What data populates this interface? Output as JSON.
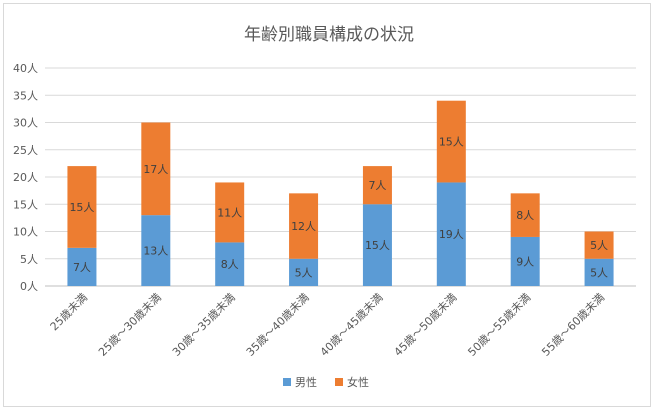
{
  "chart_data": {
    "type": "bar",
    "stacked": true,
    "title": "年齢別職員構成の状況",
    "xlabel": "",
    "ylabel": "",
    "ylim": [
      0,
      40
    ],
    "ytick_step": 5,
    "y_tick_labels": [
      "0人",
      "5人",
      "10人",
      "15人",
      "20人",
      "25人",
      "30人",
      "35人",
      "40人"
    ],
    "grid": true,
    "legend_position": "bottom",
    "categories": [
      "25歳未満",
      "25歳～30歳未満",
      "30歳～35歳未満",
      "35歳～40歳未満",
      "40歳～45歳未満",
      "45歳～50歳未満",
      "50歳～55歳未満",
      "55歳～60歳未満"
    ],
    "series": [
      {
        "name": "男性",
        "color": "#5b9bd5",
        "values": [
          7,
          13,
          8,
          5,
          15,
          19,
          9,
          5
        ],
        "labels": [
          "7人",
          "13人",
          "8人",
          "5人",
          "15人",
          "19人",
          "9人",
          "5人"
        ]
      },
      {
        "name": "女性",
        "color": "#ed7d31",
        "values": [
          15,
          17,
          11,
          12,
          7,
          15,
          8,
          5
        ],
        "labels": [
          "15人",
          "17人",
          "11人",
          "12人",
          "7人",
          "15人",
          "8人",
          "5人"
        ]
      }
    ],
    "colors": {
      "grid": "#d9d9d9",
      "axis": "#bfbfbf"
    }
  }
}
